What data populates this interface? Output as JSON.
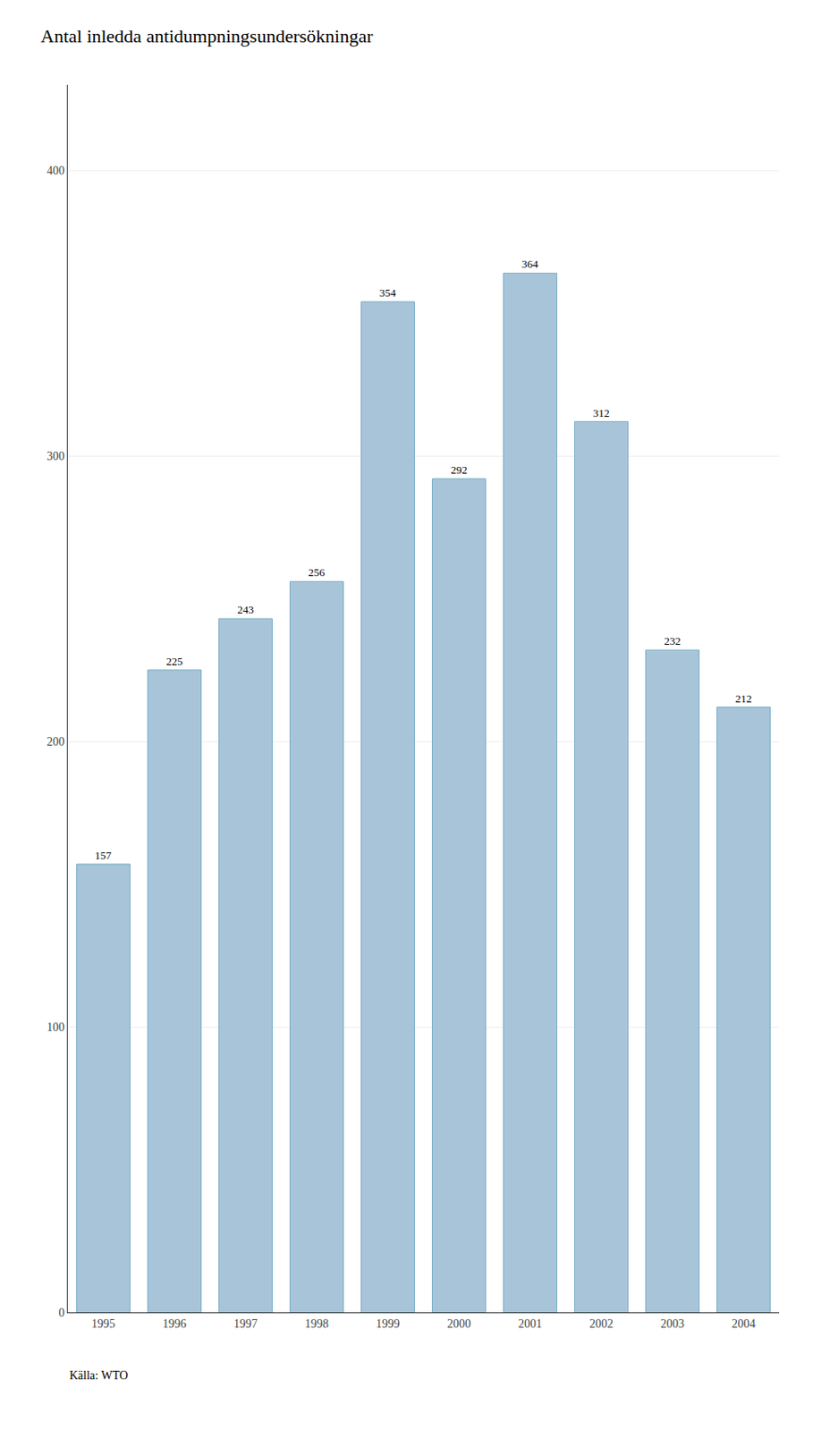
{
  "chart_data": {
    "type": "bar",
    "title": "Antal inledda antidumpningsundersökningar",
    "categories": [
      "1995",
      "1996",
      "1997",
      "1998",
      "1999",
      "2000",
      "2001",
      "2002",
      "2003",
      "2004"
    ],
    "values": [
      157,
      225,
      243,
      256,
      354,
      292,
      364,
      312,
      232,
      212
    ],
    "color": "#a8c4d8",
    "ylim": [
      0,
      430
    ],
    "yticks": [
      0,
      100,
      200,
      300,
      400
    ],
    "grid": true,
    "data_labels": true,
    "annotations": [
      "Källa: WTO"
    ]
  }
}
